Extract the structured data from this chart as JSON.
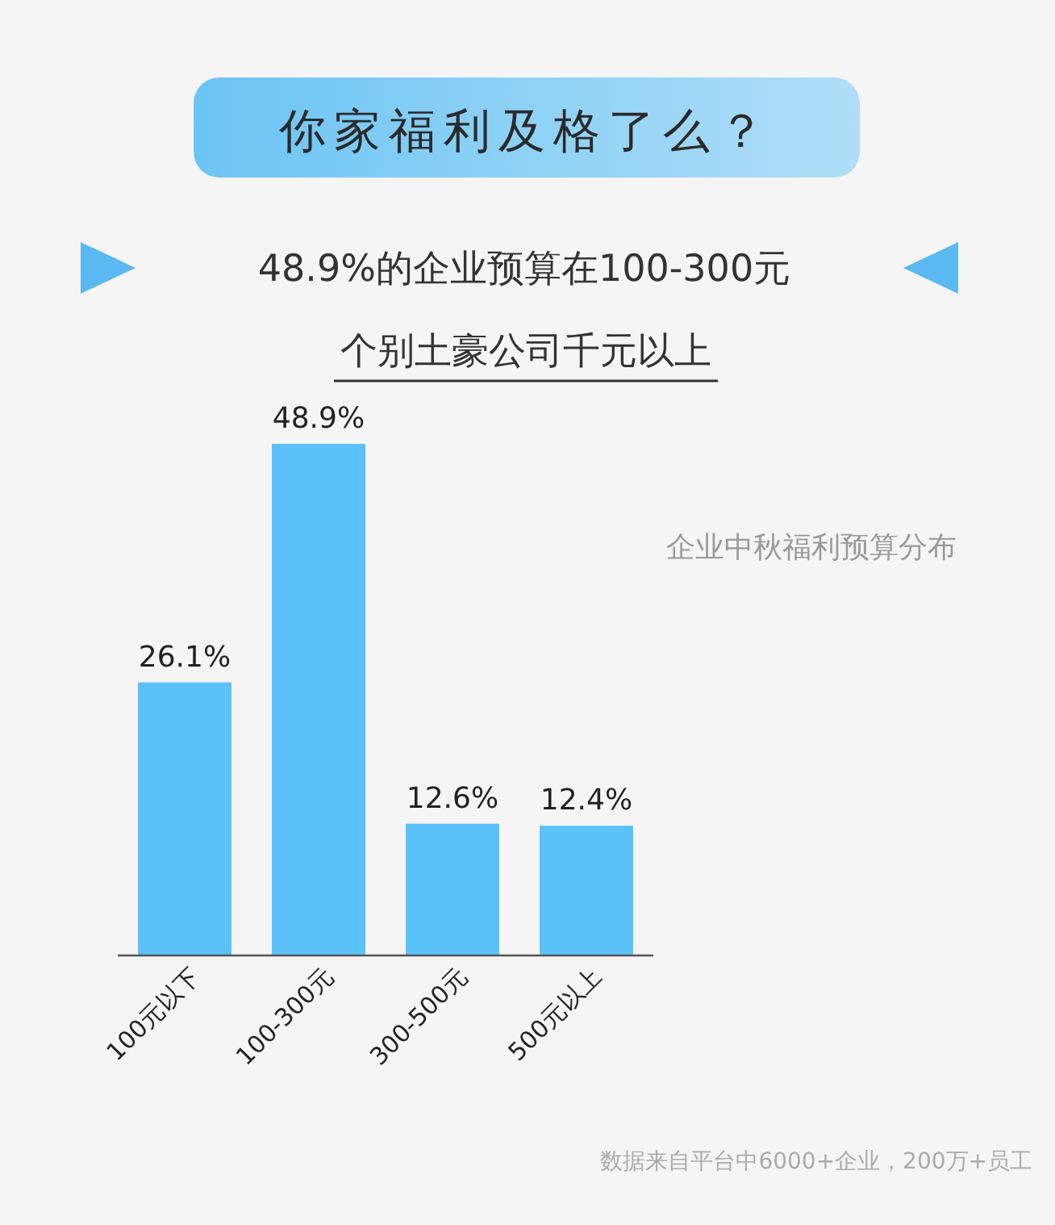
{
  "chart_data": {
    "type": "bar",
    "title": "你家福利及格了么？",
    "subtitle": "48.9%的企业预算在100-300元",
    "annotations": [
      "个别土豪公司千元以上",
      "企业中秋福利预算分布",
      "数据来自平台中6000+企业，200万+员工"
    ],
    "categories": [
      "100元以下",
      "100-300元",
      "300-500元",
      "500元以上"
    ],
    "values": [
      26.1,
      48.9,
      12.6,
      12.4
    ],
    "value_labels": [
      "26.1%",
      "48.9%",
      "12.6%",
      "12.4%"
    ],
    "color": "#5bc1f9"
  }
}
